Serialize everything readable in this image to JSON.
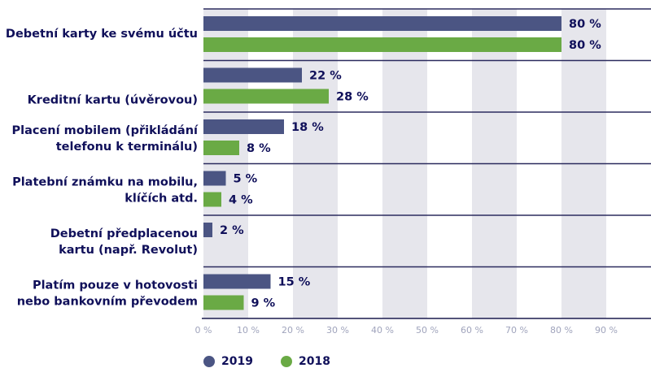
{
  "chart_data": {
    "type": "bar",
    "orientation": "horizontal",
    "categories": [
      "Debetní karty ke svému účtu",
      "Kreditní kartu (úvěrovou)",
      "Placení mobilem (přikládání telefonu k terminálu)",
      "Platební známku na mobilu, klíčích atd.",
      "Debetní předplacenou kartu (např. Revolut)",
      "Platím pouze v hotovosti nebo bankovním převodem"
    ],
    "category_lines": [
      [
        "Debetní karty ke svému účtu"
      ],
      [
        "Kreditní kartu (úvěrovou)"
      ],
      [
        "Placení mobilem (přikládání",
        "telefonu k terminálu)"
      ],
      [
        "Platební známku na mobilu,",
        "klíčích atd."
      ],
      [
        "Debetní předplacenou",
        "kartu (např. Revolut)"
      ],
      [
        "Platím pouze v hotovosti",
        "nebo bankovním převodem"
      ]
    ],
    "series": [
      {
        "name": "2019",
        "color": "#4b5583",
        "values": [
          80,
          22,
          18,
          5,
          2,
          15
        ],
        "labels": [
          "80 %",
          "22 %",
          "18 %",
          "5 %",
          "2 %",
          "15 %"
        ]
      },
      {
        "name": "2018",
        "color": "#6aaa45",
        "values": [
          80,
          28,
          8,
          4,
          null,
          9
        ],
        "labels": [
          "80 %",
          "28 %",
          "8 %",
          "4 %",
          "",
          "9 %"
        ]
      }
    ],
    "xlim": [
      0,
      100
    ],
    "xticks": [
      "0 %",
      "10 %",
      "20 %",
      "30 %",
      "40 %",
      "50 %",
      "60 %",
      "70 %",
      "80 %",
      "90 %"
    ],
    "xtick_values": [
      0,
      10,
      20,
      30,
      40,
      50,
      60,
      70,
      80,
      90
    ],
    "band_color": "#e6e6ec",
    "legend": "bottom-left"
  }
}
